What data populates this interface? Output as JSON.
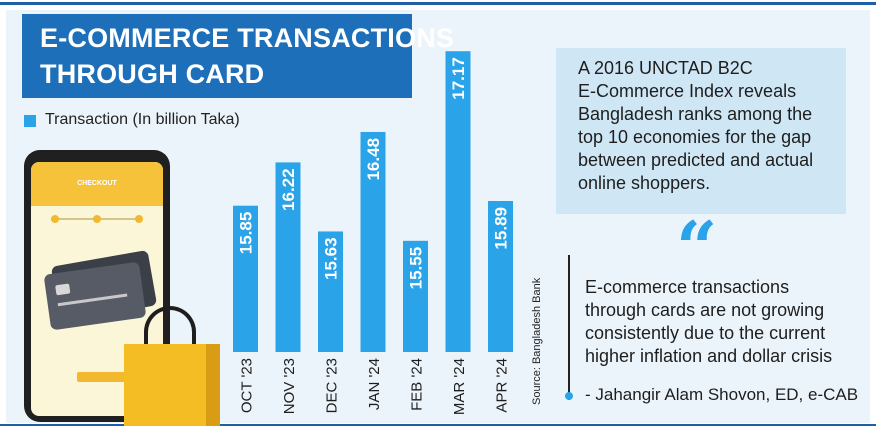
{
  "title": {
    "line1": "E-COMMERCE TRANSACTIONS",
    "line2": "THROUGH CARD"
  },
  "legend": {
    "label": "Transaction (In billion Taka)"
  },
  "source": "Source: Bangladesh Bank",
  "info_box": {
    "lines": [
      "A 2016 UNCTAD B2C",
      "E-Commerce Index reveals",
      "Bangladesh ranks among the",
      "top 10 economies for the gap",
      "between predicted and actual",
      "online shoppers."
    ]
  },
  "quote": {
    "mark": "“",
    "lines": [
      "E-commerce transactions",
      "through cards are not growing",
      "consistently due to the current",
      "higher inflation and dollar crisis"
    ],
    "attribution": "- Jahangir Alam Shovon, ED, e-CAB"
  },
  "phone": {
    "checkout": "CHECKOUT"
  },
  "colors": {
    "bar": "#2aa3e8",
    "title_bg": "#1c6fb8",
    "info_bg": "#cfe6f5",
    "bag": "#f4bd24"
  },
  "chart_data": {
    "type": "bar",
    "orientation": "vertical",
    "categories": [
      "OCT '23",
      "NOV '23",
      "DEC '23",
      "JAN '24",
      "FEB '24",
      "MAR '24",
      "APR '24"
    ],
    "values": [
      15.85,
      16.22,
      15.63,
      16.48,
      15.55,
      17.17,
      15.89
    ],
    "value_labels": [
      "15.85",
      "16.22",
      "15.63",
      "16.48",
      "15.55",
      "17.17",
      "15.89"
    ],
    "series_name": "Transaction (In billion Taka)",
    "ylim": [
      14.6,
      17.3
    ],
    "grid": false,
    "legend_position": "top-left"
  }
}
